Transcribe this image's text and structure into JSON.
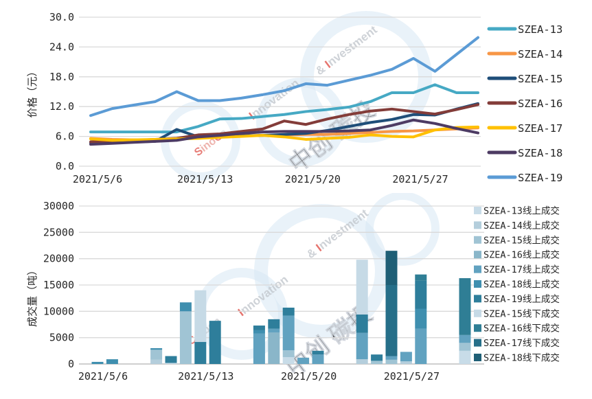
{
  "watermark": {
    "brand_red": "SinoCarbon",
    "slogan_part1": "Innovation",
    "slogan_part2": "& Investment",
    "carbon_text": "Carbon",
    "cn_name": "中创 碳投"
  },
  "chart_data": [
    {
      "type": "line",
      "title": "",
      "xlabel": "",
      "ylabel": "价格（元）",
      "ylim": [
        0,
        30
      ],
      "yticks": [
        "0.0",
        "6.0",
        "12.0",
        "18.0",
        "24.0",
        "30.0"
      ],
      "grid": true,
      "legend_position": "right",
      "categories": [
        "2021/5/6",
        "2021/5/7",
        "2021/5/10",
        "2021/5/11",
        "2021/5/12",
        "2021/5/13",
        "2021/5/14",
        "2021/5/17",
        "2021/5/18",
        "2021/5/19",
        "2021/5/20",
        "2021/5/21",
        "2021/5/24",
        "2021/5/25",
        "2021/5/26",
        "2021/5/27",
        "2021/5/28",
        "2021/5/31",
        "2021/6/1"
      ],
      "x_tick_labels": [
        "2021/5/6",
        "2021/5/13",
        "2021/5/20",
        "2021/5/27"
      ],
      "x_tick_indices": [
        0,
        5,
        10,
        15
      ],
      "series": [
        {
          "name": "SZEA-13",
          "color": "#46A9C4",
          "values": [
            6.9,
            6.9,
            6.9,
            6.9,
            6.9,
            8.0,
            9.5,
            9.6,
            10.0,
            10.4,
            11.0,
            11.4,
            11.9,
            13.0,
            14.8,
            14.8,
            16.4,
            14.8,
            14.8
          ]
        },
        {
          "name": "SZEA-14",
          "color": "#F79646",
          "values": [
            5.6,
            5.4,
            5.3,
            5.3,
            5.4,
            5.8,
            6.0,
            6.1,
            6.2,
            6.3,
            6.4,
            6.4,
            6.6,
            6.8,
            7.0,
            7.1,
            7.3,
            7.5,
            7.7
          ]
        },
        {
          "name": "SZEA-15",
          "color": "#1F4E79",
          "values": [
            4.7,
            4.8,
            4.9,
            5.0,
            7.4,
            5.9,
            6.0,
            6.1,
            6.2,
            6.4,
            6.6,
            7.2,
            8.0,
            8.8,
            9.4,
            10.4,
            10.3,
            11.5,
            12.6
          ]
        },
        {
          "name": "SZEA-16",
          "color": "#833C39",
          "values": [
            4.9,
            5.0,
            5.2,
            5.4,
            5.6,
            6.3,
            6.5,
            7.0,
            7.5,
            9.1,
            8.4,
            9.5,
            10.4,
            11.1,
            11.5,
            11.0,
            10.5,
            11.4,
            12.4
          ]
        },
        {
          "name": "SZEA-17",
          "color": "#FFC000",
          "values": [
            5.5,
            5.2,
            5.3,
            5.4,
            5.5,
            5.6,
            5.8,
            6.0,
            6.2,
            5.9,
            5.4,
            5.6,
            5.8,
            6.3,
            6.0,
            5.9,
            7.3,
            7.8,
            7.9
          ]
        },
        {
          "name": "SZEA-18",
          "color": "#4D3B63",
          "values": [
            4.4,
            4.6,
            4.8,
            5.0,
            5.2,
            5.9,
            6.2,
            6.6,
            6.9,
            7.0,
            7.0,
            7.0,
            7.1,
            7.3,
            8.2,
            9.3,
            8.6,
            7.6,
            6.7
          ]
        },
        {
          "name": "SZEA-19",
          "color": "#5B9BD5",
          "values": [
            10.2,
            11.6,
            12.3,
            13.0,
            15.0,
            13.2,
            13.2,
            13.7,
            14.4,
            15.2,
            16.6,
            16.3,
            17.3,
            18.3,
            19.5,
            21.7,
            19.1,
            22.5,
            25.9
          ]
        }
      ]
    },
    {
      "type": "bar",
      "stacked": true,
      "title": "",
      "xlabel": "",
      "ylabel": "成交量（吨）",
      "ylim": [
        0,
        30000
      ],
      "yticks": [
        "0",
        "5000",
        "10000",
        "15000",
        "20000",
        "25000",
        "30000"
      ],
      "grid": true,
      "legend_position": "right",
      "categories": [
        "2021/5/6",
        "2021/5/7",
        "2021/5/10",
        "2021/5/11",
        "2021/5/12",
        "2021/5/13",
        "2021/5/14",
        "2021/5/17",
        "2021/5/18",
        "2021/5/19",
        "2021/5/20",
        "2021/5/21",
        "2021/5/24",
        "2021/5/25",
        "2021/5/26",
        "2021/5/27",
        "2021/5/28",
        "2021/5/31"
      ],
      "day_offsets": [
        0,
        1,
        4,
        5,
        6,
        7,
        8,
        11,
        12,
        13,
        14,
        15,
        18,
        19,
        20,
        21,
        22,
        25
      ],
      "x_tick_labels": [
        "2021/5/6",
        "2021/5/13",
        "2021/5/20",
        "2021/5/27"
      ],
      "x_tick_day_offsets": [
        0,
        7,
        14,
        21
      ],
      "bar_totals": [
        400,
        900,
        3000,
        1500,
        11700,
        14000,
        8200,
        7300,
        8500,
        10700,
        1200,
        2500,
        19800,
        1800,
        21500,
        2300,
        17000,
        16300
      ],
      "series": [
        {
          "name": "SZEA-13线上成交",
          "color": "#C8DCE8",
          "values": [
            0,
            0,
            0,
            200,
            0,
            0,
            0,
            0,
            0,
            1300,
            0,
            0,
            0,
            0,
            0,
            0,
            0,
            2500
          ]
        },
        {
          "name": "SZEA-14线上成交",
          "color": "#B4CEDC",
          "values": [
            0,
            0,
            800,
            0,
            0,
            0,
            0,
            0,
            0,
            0,
            0,
            0,
            900,
            0,
            0,
            500,
            0,
            0
          ]
        },
        {
          "name": "SZEA-15线上成交",
          "color": "#A0C4D4",
          "values": [
            0,
            0,
            1900,
            0,
            10000,
            0,
            0,
            0,
            0,
            1300,
            0,
            0,
            0,
            600,
            800,
            0,
            0,
            1500
          ]
        },
        {
          "name": "SZEA-16线上成交",
          "color": "#8AB6C9",
          "values": [
            0,
            0,
            0,
            0,
            0,
            0,
            0,
            0,
            6000,
            0,
            0,
            0,
            0,
            0,
            0,
            0,
            0,
            0
          ]
        },
        {
          "name": "SZEA-17线上成交",
          "color": "#61A2C0",
          "values": [
            0,
            0,
            0,
            0,
            0,
            0,
            0,
            5800,
            700,
            6600,
            1200,
            1800,
            5000,
            0,
            700,
            1800,
            6700,
            1500
          ]
        },
        {
          "name": "SZEA-18线上成交",
          "color": "#3F8FAF",
          "values": [
            400,
            900,
            300,
            0,
            1700,
            0,
            0,
            600,
            0,
            0,
            0,
            0,
            0,
            0,
            0,
            0,
            3800,
            0
          ]
        },
        {
          "name": "SZEA-19线上成交",
          "color": "#2E7E9B",
          "values": [
            0,
            0,
            0,
            1300,
            0,
            4200,
            8200,
            900,
            1800,
            1500,
            0,
            700,
            3500,
            1200,
            0,
            0,
            5300,
            0
          ]
        },
        {
          "name": "SZEA-15线下成交",
          "color": "#C6DAE6",
          "values": [
            0,
            0,
            0,
            0,
            0,
            9800,
            0,
            0,
            0,
            0,
            0,
            0,
            10400,
            0,
            0,
            0,
            0,
            0
          ]
        },
        {
          "name": "SZEA-16线下成交",
          "color": "#2F7E95",
          "values": [
            0,
            0,
            0,
            0,
            0,
            0,
            0,
            0,
            0,
            0,
            0,
            0,
            0,
            0,
            0,
            0,
            1200,
            10800
          ]
        },
        {
          "name": "SZEA-17线下成交",
          "color": "#266F89",
          "values": [
            0,
            0,
            0,
            0,
            0,
            0,
            0,
            0,
            0,
            0,
            0,
            0,
            0,
            0,
            13500,
            0,
            0,
            0
          ]
        },
        {
          "name": "SZEA-18线下成交",
          "color": "#1F5F76",
          "values": [
            0,
            0,
            0,
            0,
            0,
            0,
            0,
            0,
            0,
            0,
            0,
            0,
            0,
            0,
            6500,
            0,
            0,
            0
          ]
        }
      ]
    }
  ]
}
